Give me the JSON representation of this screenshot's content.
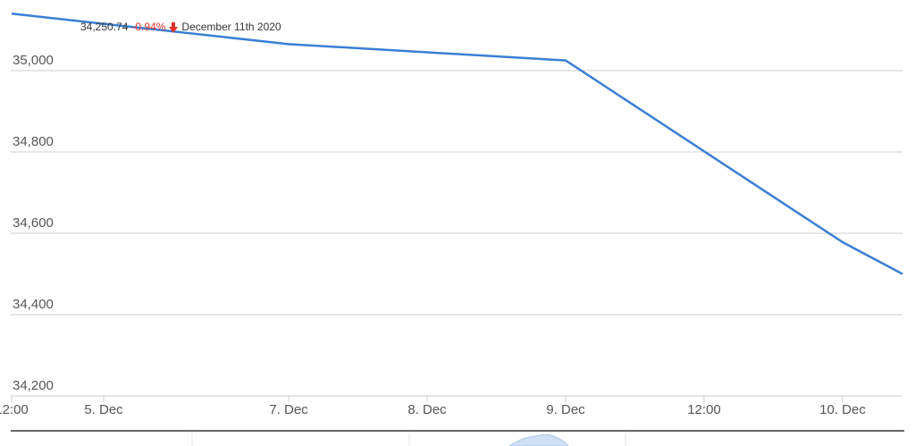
{
  "tooltip": {
    "value": "34,250.74",
    "change": "-0.94%",
    "date": "December 11th 2020",
    "direction_icon": "arrow-down-icon",
    "change_color": "#e0322d"
  },
  "colors": {
    "line": "#3a7fd5",
    "grid": "#cccccc",
    "axis": "#333333",
    "text": "#555555"
  },
  "chart_data": {
    "type": "line",
    "title": "",
    "xlabel": "",
    "ylabel": "",
    "ylim": [
      34200,
      35150
    ],
    "grid": true,
    "yticks": [
      "34,200",
      "34,400",
      "34,600",
      "34,800",
      "35,000"
    ],
    "ytick_values": [
      34200,
      34400,
      34600,
      34800,
      35000
    ],
    "xticks": [
      "12:00",
      "5. Dec",
      "7. Dec",
      "8. Dec",
      "9. Dec",
      "12:00",
      "10. Dec"
    ],
    "xtick_times": [
      "2020-12-04T12:00",
      "2020-12-05T00:00",
      "2020-12-07T00:00",
      "2020-12-08T00:00",
      "2020-12-09T00:00",
      "2020-12-09T12:00",
      "2020-12-10T00:00"
    ],
    "series": [
      {
        "x": [
          "2020-12-04T12:00",
          "2020-12-07T00:00",
          "2020-12-09T00:00",
          "2020-12-10T00:00",
          "2020-12-10T12:00"
        ],
        "y": [
          35140,
          35065,
          35025,
          34578,
          34500
        ]
      }
    ]
  }
}
